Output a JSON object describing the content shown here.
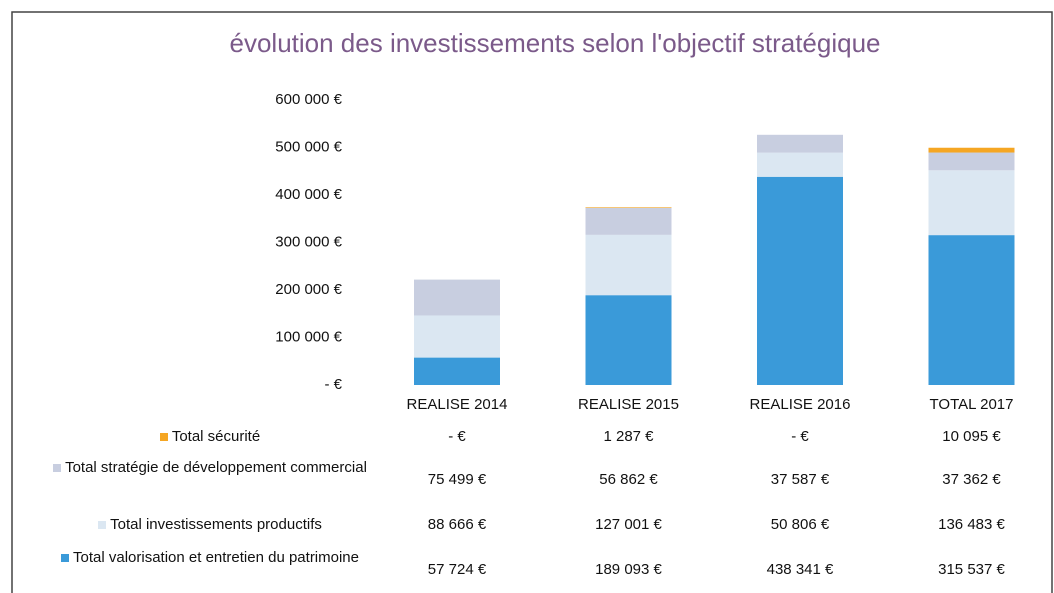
{
  "chart_data": {
    "type": "bar",
    "stacked": true,
    "title": "évolution des investissements selon l'objectif stratégique",
    "categories": [
      "REALISE 2014",
      "REALISE 2015",
      "REALISE 2016",
      "TOTAL 2017"
    ],
    "series": [
      {
        "name": "Total sécurité",
        "color": "#f5a623",
        "values": [
          0,
          1287,
          0,
          10095
        ],
        "value_labels": [
          "- €",
          "1 287 €",
          "- €",
          "10 095 €"
        ]
      },
      {
        "name": "Total stratégie de développement commercial",
        "color": "#c8cee0",
        "values": [
          75499,
          56862,
          37587,
          37362
        ],
        "value_labels": [
          "75 499 €",
          "56 862 €",
          "37 587 €",
          "37 362 €"
        ]
      },
      {
        "name": "Total investissements productifs",
        "color": "#dbe7f2",
        "values": [
          88666,
          127001,
          50806,
          136483
        ],
        "value_labels": [
          "88 666 €",
          "127 001 €",
          "50 806 €",
          "136 483 €"
        ]
      },
      {
        "name": "Total valorisation et entretien du patrimoine",
        "color": "#3a9ad9",
        "values": [
          57724,
          189093,
          438341,
          315537
        ],
        "value_labels": [
          "57 724 €",
          "189 093 €",
          "438 341 €",
          "315 537 €"
        ]
      }
    ],
    "ylim": [
      0,
      600000
    ],
    "yticks": [
      {
        "value": 0,
        "label": "- €"
      },
      {
        "value": 100000,
        "label": "100 000 €"
      },
      {
        "value": 200000,
        "label": "200 000 €"
      },
      {
        "value": 300000,
        "label": "300 000 €"
      },
      {
        "value": 400000,
        "label": "400 000 €"
      },
      {
        "value": 500000,
        "label": "500 000 €"
      },
      {
        "value": 600000,
        "label": "600 000 €"
      }
    ],
    "grid": false
  }
}
